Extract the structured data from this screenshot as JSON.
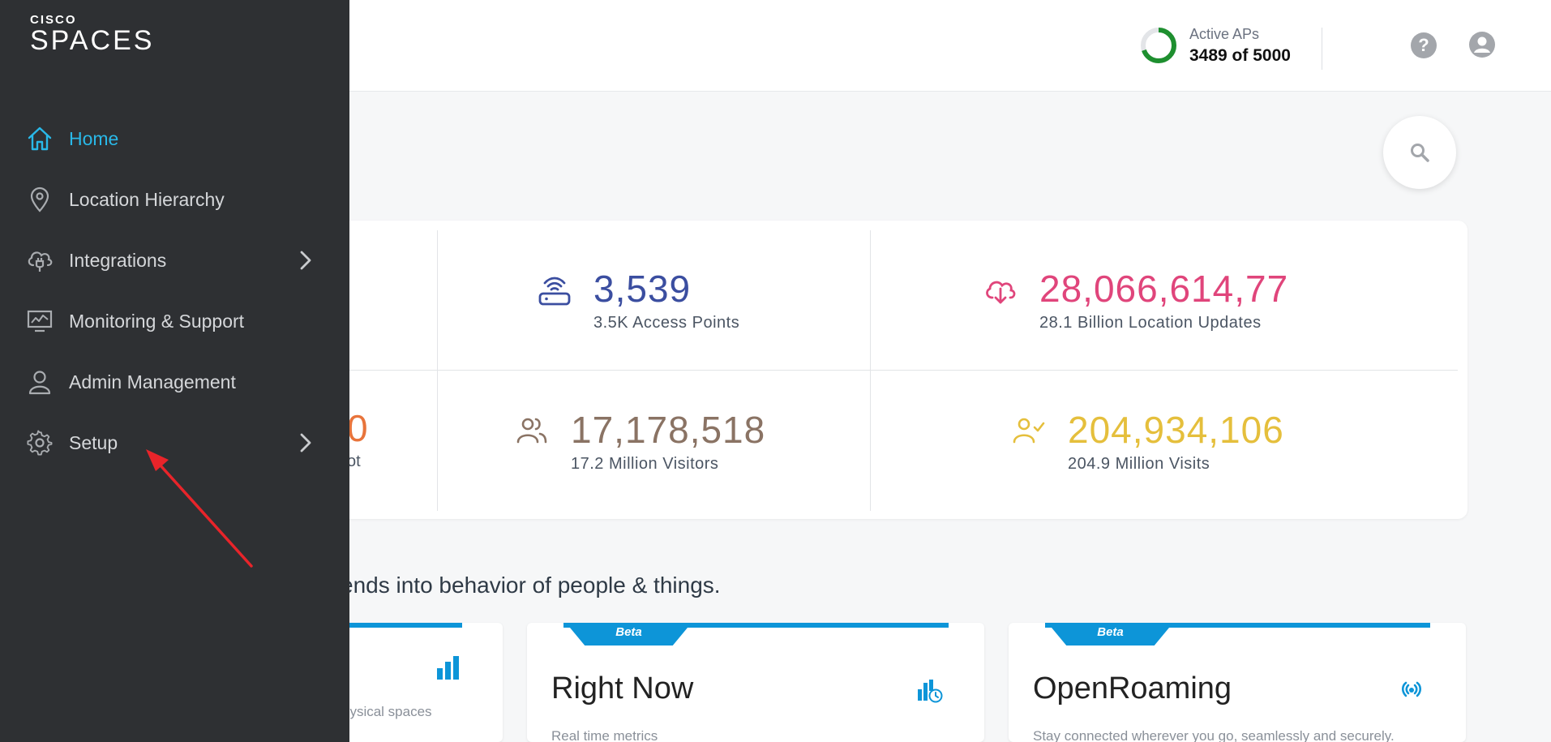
{
  "header": {
    "active_aps_label": "Active APs",
    "active_aps_value": "3489 of 5000",
    "active_aps_fraction": 0.698,
    "help_label": "?"
  },
  "sidebar": {
    "logo_top": "CISCO",
    "logo_bottom": "SPACES",
    "items": [
      {
        "label": "Home",
        "icon": "home-icon",
        "active": true
      },
      {
        "label": "Location Hierarchy",
        "icon": "location-pin-icon"
      },
      {
        "label": "Integrations",
        "icon": "cloud-plug-icon",
        "has_submenu": true
      },
      {
        "label": "Monitoring & Support",
        "icon": "monitor-chart-icon"
      },
      {
        "label": "Admin Management",
        "icon": "user-icon"
      },
      {
        "label": "Setup",
        "icon": "gear-icon",
        "has_submenu": true
      }
    ]
  },
  "stats": {
    "access_points": {
      "value": "3,539",
      "label": "3.5K Access Points",
      "color": "#3b4ea0"
    },
    "location_updates": {
      "value": "28,066,614,77",
      "label": "28.1 Billion Location Updates",
      "color": "#e0457b"
    },
    "partial": {
      "value": "0",
      "label": "ot",
      "color": "#e8743b"
    },
    "visitors": {
      "value": "17,178,518",
      "label": "17.2 Million Visitors",
      "color": "#8a7364"
    },
    "visits": {
      "value": "204,934,106",
      "label": "204.9 Million Visits",
      "color": "#e5bf3c"
    }
  },
  "tagline": "ends into behavior of people & things.",
  "cards": [
    {
      "title": "",
      "desc": "hysical spaces",
      "beta": false
    },
    {
      "title": "Right Now",
      "desc": "Real time metrics",
      "beta": true,
      "beta_label": "Beta"
    },
    {
      "title": "OpenRoaming",
      "desc": "Stay connected wherever you go, seamlessly and securely.",
      "beta": true,
      "beta_label": "Beta"
    }
  ],
  "colors": {
    "accent": "#29b8e8",
    "sidebar_bg": "#2e3033",
    "card_stripe": "#0d95d8",
    "annotation": "#e8242a"
  }
}
